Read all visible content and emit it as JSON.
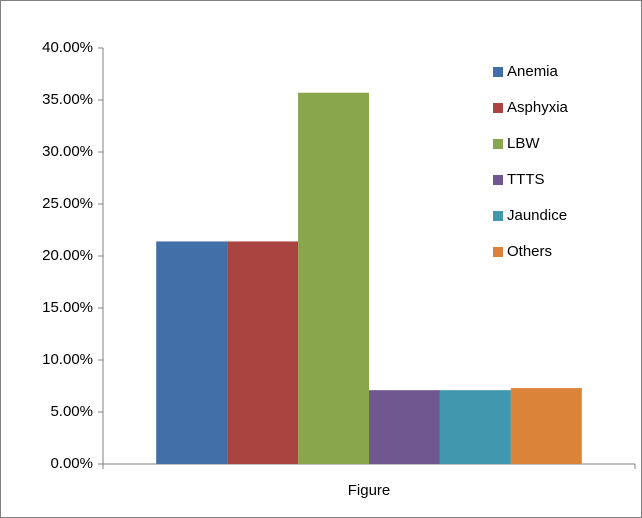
{
  "chart_data": {
    "type": "bar",
    "categories": [
      "Figure"
    ],
    "series": [
      {
        "name": "Anemia",
        "color": "#4170a8",
        "values": [
          21.4
        ]
      },
      {
        "name": "Asphyxia",
        "color": "#aa4441",
        "values": [
          21.4
        ]
      },
      {
        "name": "LBW",
        "color": "#89a64d",
        "values": [
          35.7
        ]
      },
      {
        "name": "TTTS",
        "color": "#71578f",
        "values": [
          7.1
        ]
      },
      {
        "name": "Jaundice",
        "color": "#4097ae",
        "values": [
          7.1
        ]
      },
      {
        "name": "Others",
        "color": "#db8439",
        "values": [
          7.3
        ]
      }
    ],
    "ylim": [
      0,
      40
    ],
    "yticks": [
      {
        "value": 0,
        "label": "0.00%"
      },
      {
        "value": 5,
        "label": "5.00%"
      },
      {
        "value": 10,
        "label": "10.00%"
      },
      {
        "value": 15,
        "label": "15.00%"
      },
      {
        "value": 20,
        "label": "20.00%"
      },
      {
        "value": 25,
        "label": "25.00%"
      },
      {
        "value": 30,
        "label": "30.00%"
      },
      {
        "value": 35,
        "label": "35.00%"
      },
      {
        "value": 40,
        "label": "40.00%"
      }
    ],
    "grid": false,
    "legend": "right"
  }
}
